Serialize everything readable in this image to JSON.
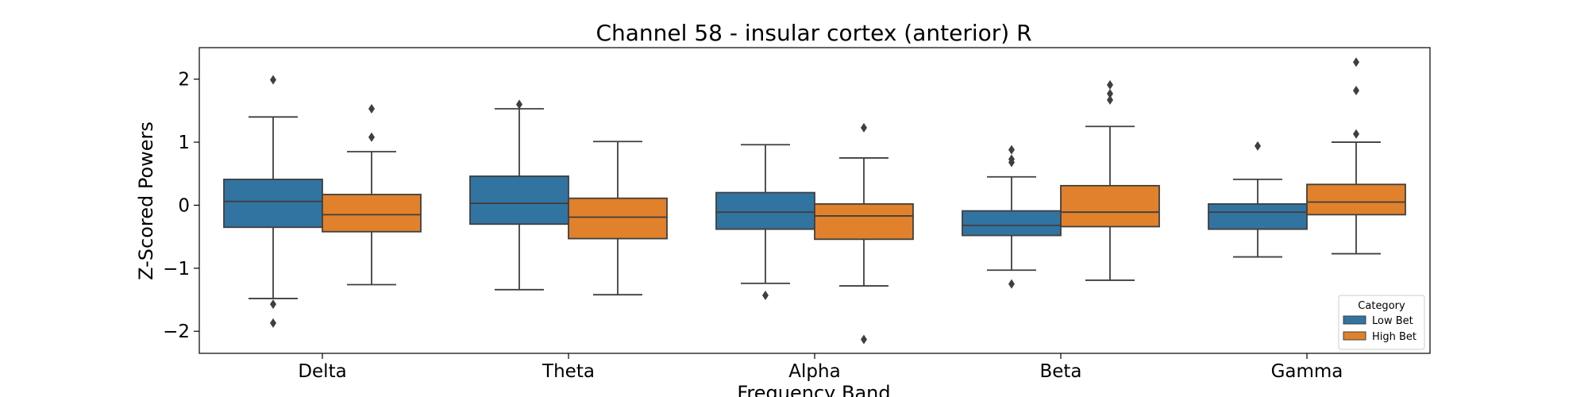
{
  "chart_data": {
    "type": "box",
    "title": "Channel 58 - insular cortex (anterior) R",
    "xlabel": "Frequency Band",
    "ylabel": "Z-Scored Powers",
    "ylim": [
      -2.35,
      2.5
    ],
    "yticks": [
      -2,
      -1,
      0,
      1,
      2
    ],
    "ytick_labels": [
      "−2",
      "−1",
      "0",
      "1",
      "2"
    ],
    "categories": [
      "Delta",
      "Theta",
      "Alpha",
      "Beta",
      "Gamma"
    ],
    "legend": {
      "title": "Category",
      "position": "lower-right"
    },
    "series": [
      {
        "name": "Low Bet",
        "color": "#3274a1",
        "boxes": [
          {
            "whislo": -1.48,
            "q1": -0.35,
            "med": 0.06,
            "q3": 0.41,
            "whishi": 1.4,
            "fliers": [
              1.99,
              -1.57,
              -1.87
            ]
          },
          {
            "whislo": -1.34,
            "q1": -0.3,
            "med": 0.03,
            "q3": 0.46,
            "whishi": 1.53,
            "fliers": [
              1.6
            ]
          },
          {
            "whislo": -1.24,
            "q1": -0.38,
            "med": -0.11,
            "q3": 0.2,
            "whishi": 0.96,
            "fliers": [
              -1.43
            ]
          },
          {
            "whislo": -1.03,
            "q1": -0.48,
            "med": -0.32,
            "q3": -0.09,
            "whishi": 0.45,
            "fliers": [
              0.88,
              0.73,
              0.68,
              -1.25
            ]
          },
          {
            "whislo": -0.82,
            "q1": -0.38,
            "med": -0.11,
            "q3": 0.02,
            "whishi": 0.41,
            "fliers": [
              0.94
            ]
          }
        ]
      },
      {
        "name": "High Bet",
        "color": "#e1812c",
        "boxes": [
          {
            "whislo": -1.26,
            "q1": -0.42,
            "med": -0.15,
            "q3": 0.17,
            "whishi": 0.85,
            "fliers": [
              1.53,
              1.08
            ]
          },
          {
            "whislo": -1.42,
            "q1": -0.53,
            "med": -0.19,
            "q3": 0.11,
            "whishi": 1.01,
            "fliers": []
          },
          {
            "whislo": -1.28,
            "q1": -0.54,
            "med": -0.17,
            "q3": 0.02,
            "whishi": 0.75,
            "fliers": [
              1.23,
              -2.13
            ]
          },
          {
            "whislo": -1.19,
            "q1": -0.34,
            "med": -0.11,
            "q3": 0.31,
            "whishi": 1.25,
            "fliers": [
              1.91,
              1.77,
              1.67
            ]
          },
          {
            "whislo": -0.77,
            "q1": -0.15,
            "med": 0.05,
            "q3": 0.33,
            "whishi": 1.0,
            "fliers": [
              2.27,
              1.82,
              1.13
            ]
          }
        ]
      }
    ]
  }
}
